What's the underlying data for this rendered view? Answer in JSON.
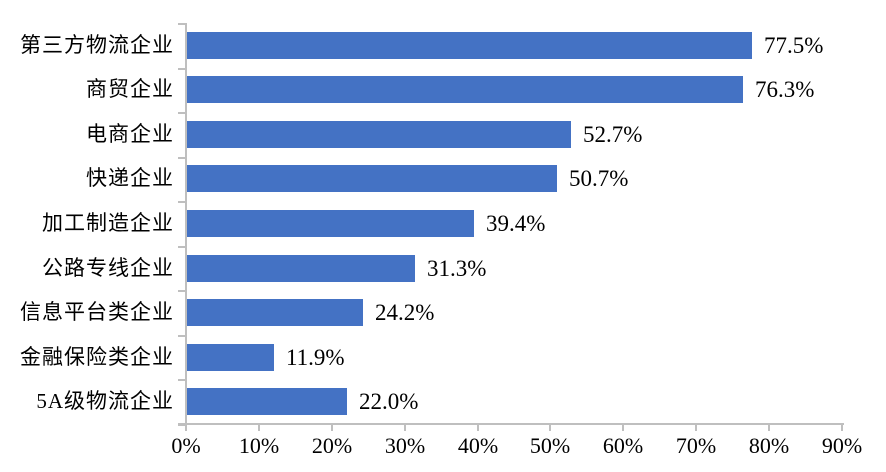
{
  "chart_data": {
    "type": "bar",
    "orientation": "horizontal",
    "title": "",
    "xlabel": "",
    "ylabel": "",
    "categories": [
      "第三方物流企业",
      "商贸企业",
      "电商企业",
      "快递企业",
      "加工制造企业",
      "公路专线企业",
      "信息平台类企业",
      "金融保险类企业",
      "5A级物流企业"
    ],
    "values": [
      77.5,
      76.3,
      52.7,
      50.7,
      39.4,
      31.3,
      24.2,
      11.9,
      22.0
    ],
    "value_labels": [
      "77.5%",
      "76.3%",
      "52.7%",
      "50.7%",
      "39.4%",
      "31.3%",
      "24.2%",
      "11.9%",
      "22.0%"
    ],
    "x_ticks": [
      "0%",
      "10%",
      "20%",
      "30%",
      "40%",
      "50%",
      "60%",
      "70%",
      "80%",
      "90%"
    ],
    "x_tick_values": [
      0,
      10,
      20,
      30,
      40,
      50,
      60,
      70,
      80,
      90
    ],
    "xlim": [
      0,
      90
    ],
    "grid": false,
    "legend": false,
    "colors": {
      "bar": "#4472C4",
      "axis": "#BFBFBF",
      "text": "#000000",
      "background": "#FFFFFF"
    }
  }
}
